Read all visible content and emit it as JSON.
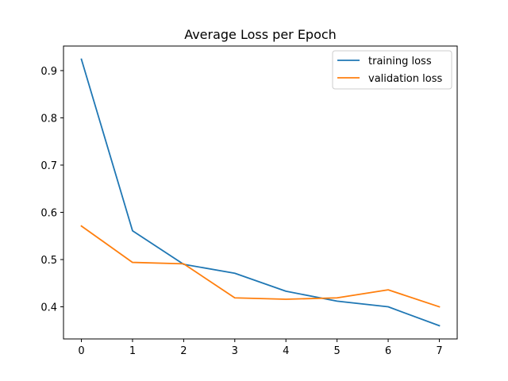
{
  "chart_data": {
    "type": "line",
    "title": "Average Loss per Epoch",
    "xlabel": "",
    "ylabel": "",
    "x": [
      0,
      1,
      2,
      3,
      4,
      5,
      6,
      7
    ],
    "xticks": [
      "0",
      "1",
      "2",
      "3",
      "4",
      "5",
      "6",
      "7"
    ],
    "yticks": [
      "0.4",
      "0.5",
      "0.6",
      "0.7",
      "0.8",
      "0.9"
    ],
    "xlim": [
      -0.35,
      7.35
    ],
    "ylim": [
      0.332,
      0.952
    ],
    "grid": false,
    "legend_position": "top-right",
    "series": [
      {
        "name": "training loss",
        "color": "#1f77b4",
        "values": [
          0.924,
          0.561,
          0.49,
          0.471,
          0.433,
          0.412,
          0.4,
          0.36
        ]
      },
      {
        "name": "validation loss",
        "color": "#ff7f0e",
        "values": [
          0.571,
          0.494,
          0.491,
          0.419,
          0.416,
          0.419,
          0.436,
          0.4
        ]
      }
    ]
  }
}
